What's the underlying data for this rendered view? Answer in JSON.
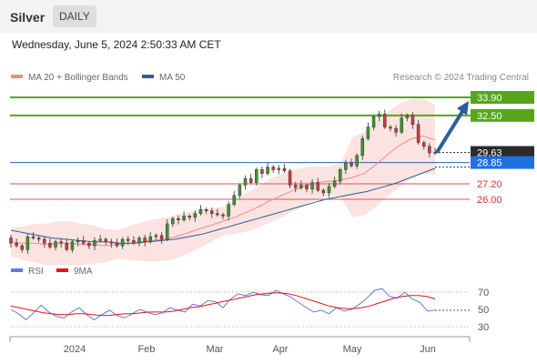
{
  "header": {
    "instrument": "Silver",
    "period": "DAILY"
  },
  "timestamp": "Wednesday, June 5, 2024 2:50:33 AM CET",
  "legend": {
    "ma20_label": "MA 20 + Bollinger Bands",
    "ma20_color": "#f28b82",
    "ma50_label": "MA 50",
    "ma50_color": "#2d5d9c"
  },
  "credit": "Research © 2024 Trading Central",
  "rsi_legend": {
    "rsi_label": "RSI",
    "rsi_color": "#5b7fd6",
    "ma_label": "9MA",
    "ma_color": "#e0141e"
  },
  "chart_data": [
    {
      "type": "candlestick",
      "title": "Silver",
      "timeframe": "daily",
      "x_ticks": [
        "2024",
        "Feb",
        "Mar",
        "Apr",
        "May",
        "Jun"
      ],
      "last_price": 29.63,
      "pivot": 28.85,
      "resistance_levels": [
        32.5,
        33.9
      ],
      "support_levels": [
        27.2,
        26.0
      ],
      "ohlc_path": [
        23.0,
        22.6,
        22.4,
        22.1,
        23.1,
        23.0,
        22.9,
        22.6,
        22.3,
        22.7,
        22.6,
        22.1,
        22.7,
        22.8,
        22.6,
        22.4,
        22.8,
        22.9,
        22.7,
        22.6,
        22.4,
        22.9,
        22.8,
        22.6,
        23.0,
        22.7,
        23.1,
        23.2,
        22.9,
        24.1,
        24.5,
        24.4,
        24.7,
        24.6,
        24.9,
        25.2,
        25.1,
        24.9,
        24.8,
        24.7,
        25.6,
        26.3,
        27.1,
        27.6,
        27.3,
        28.3,
        28.0,
        28.5,
        28.3,
        28.4,
        28.2,
        27.1,
        26.9,
        27.1,
        26.8,
        27.3,
        26.7,
        26.5,
        27.0,
        27.4,
        28.3,
        28.8,
        28.6,
        29.4,
        30.7,
        31.6,
        32.4,
        32.6,
        31.6,
        31.5,
        31.2,
        32.3,
        32.5,
        31.8,
        30.4,
        30.1,
        29.6,
        29.63
      ],
      "ma20_path": [
        22.7,
        22.6,
        22.6,
        22.5,
        22.6,
        22.6,
        22.5,
        22.5,
        22.4,
        22.5,
        22.6,
        22.7,
        22.8,
        22.9,
        23.1,
        23.4,
        23.7,
        24.0,
        24.3,
        24.6,
        25.0,
        25.4,
        25.9,
        26.3,
        26.7,
        27.0,
        27.3,
        27.4,
        27.5,
        27.7,
        28.0,
        28.7,
        29.5,
        30.2,
        30.7,
        30.9,
        30.6
      ],
      "ma50_path": [
        23.6,
        23.4,
        23.2,
        23.0,
        22.9,
        22.8,
        22.7,
        22.7,
        22.6,
        22.6,
        22.7,
        22.8,
        22.9,
        23.1,
        23.3,
        23.6,
        23.9,
        24.2,
        24.5,
        24.8,
        25.1,
        25.4,
        25.7,
        26.0,
        26.2,
        26.4,
        26.6,
        26.9,
        27.2,
        27.6,
        28.0,
        28.4
      ],
      "projection": {
        "from": 29.63,
        "to": 33.9
      }
    },
    {
      "type": "line",
      "title": "RSI",
      "series": [
        {
          "name": "RSI",
          "values": [
            50,
            45,
            38,
            46,
            55,
            47,
            42,
            40,
            47,
            52,
            44,
            38,
            44,
            49,
            43,
            40,
            45,
            50,
            47,
            44,
            46,
            52,
            49,
            47,
            56,
            54,
            60,
            59,
            52,
            62,
            68,
            66,
            70,
            67,
            66,
            72,
            68,
            64,
            58,
            52,
            47,
            49,
            45,
            52,
            48,
            50,
            56,
            63,
            72,
            74,
            65,
            63,
            70,
            62,
            58,
            48,
            49
          ]
        },
        {
          "name": "9MA",
          "values": [
            54,
            52,
            50,
            48,
            46,
            45,
            44,
            44,
            45,
            45,
            44,
            43,
            43,
            44,
            45,
            45,
            46,
            47,
            47,
            47,
            48,
            50,
            52,
            53,
            55,
            57,
            59,
            61,
            63,
            65,
            67,
            68,
            69,
            69,
            68,
            66,
            63,
            60,
            57,
            54,
            52,
            51,
            51,
            52,
            54,
            57,
            60,
            63,
            65,
            66,
            66,
            65,
            62
          ]
        }
      ],
      "y_ticks": [
        70,
        50,
        30
      ],
      "ylim": [
        20,
        80
      ],
      "x_ticks": [
        "2024",
        "Feb",
        "Mar",
        "Apr",
        "May",
        "Jun"
      ]
    }
  ]
}
